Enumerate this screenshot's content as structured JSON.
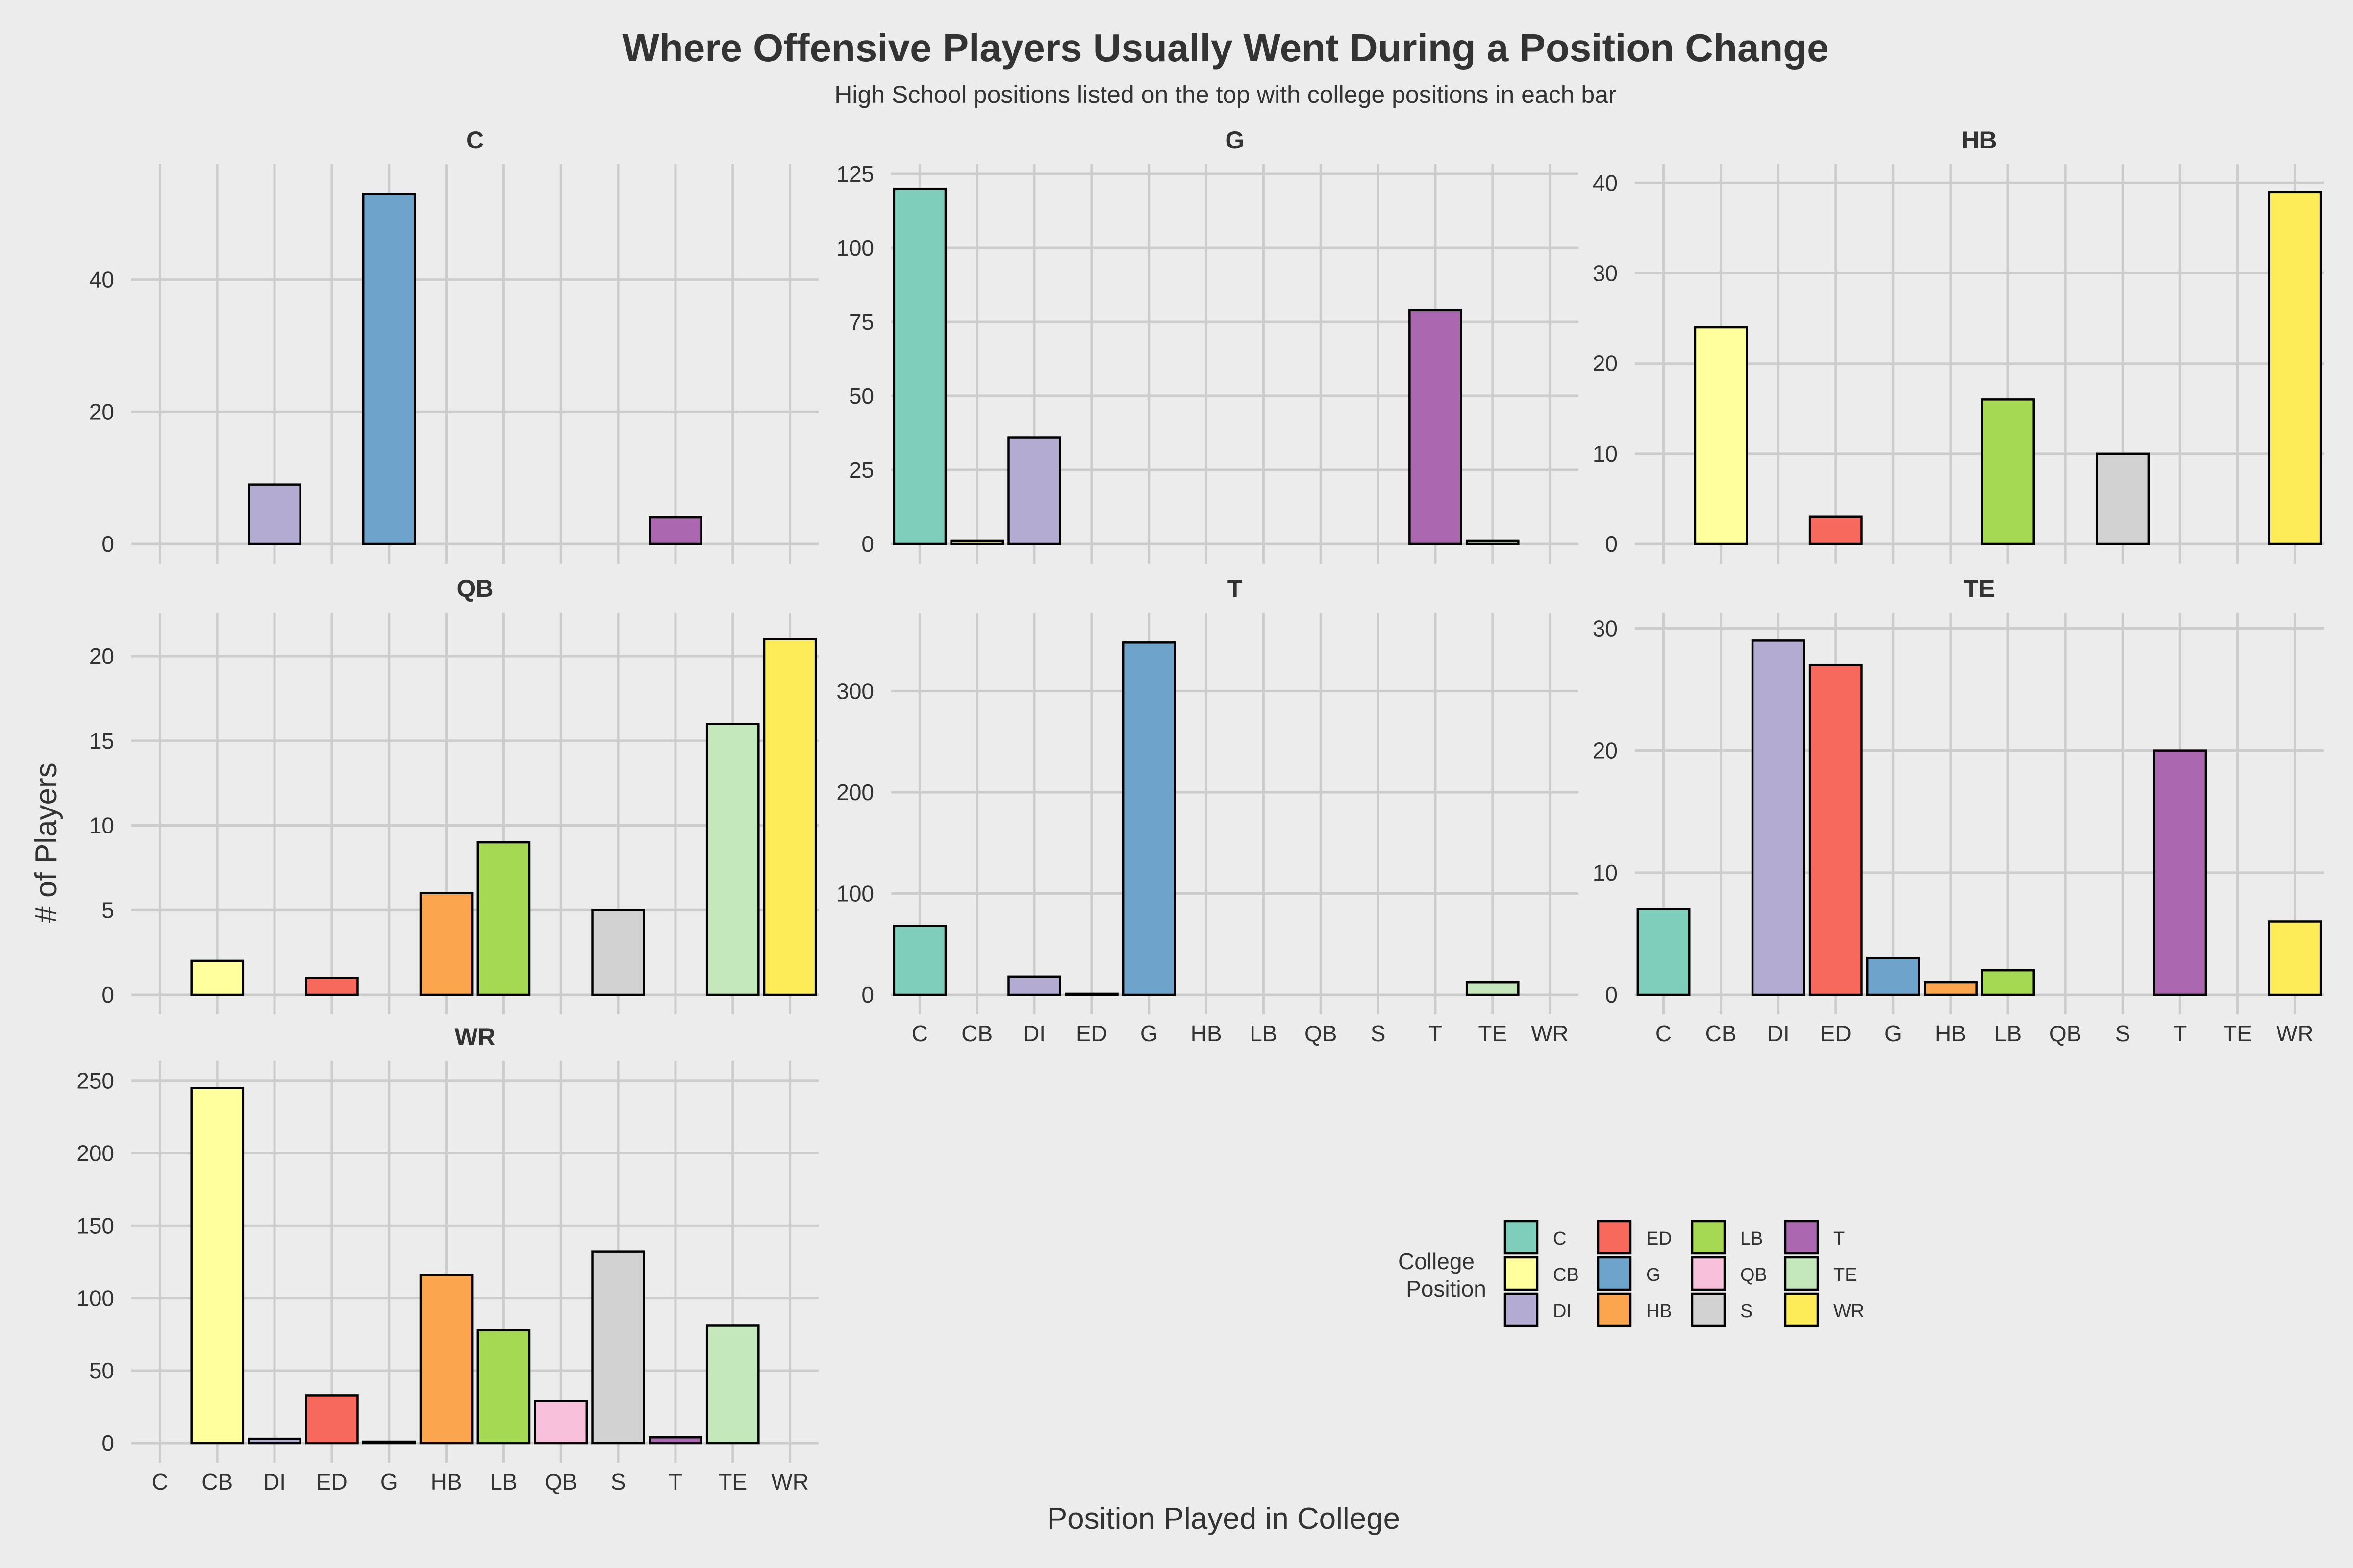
{
  "chart_data": {
    "type": "bar",
    "title": "Where Offensive Players Usually Went During a Position Change",
    "subtitle": "High School positions listed on the top with college positions in each bar",
    "xlabel": "Position Played in College",
    "ylabel": "# of Players",
    "legend_title": "College Position",
    "legend_title_lines": [
      "College",
      "Position"
    ],
    "legend_position": "bottom-right",
    "grid": true,
    "categories": [
      "C",
      "CB",
      "DI",
      "ED",
      "G",
      "HB",
      "LB",
      "QB",
      "S",
      "T",
      "TE",
      "WR"
    ],
    "colors": {
      "C": "#7fcdbb",
      "CB": "#ffff9e",
      "DI": "#b3abd2",
      "ED": "#f8695d",
      "G": "#6ea3cc",
      "HB": "#fba64f",
      "LB": "#a5d954",
      "QB": "#f9c0dc",
      "S": "#d2d2d2",
      "T": "#ab68b0",
      "TE": "#c4e8bb",
      "WR": "#fdec58"
    },
    "panels": [
      {
        "name": "C",
        "ylim": [
          0,
          56
        ],
        "ticks": [
          0,
          20,
          40
        ],
        "values": {
          "DI": 9,
          "G": 53,
          "T": 4
        }
      },
      {
        "name": "G",
        "ylim": [
          0,
          125
        ],
        "ticks": [
          0,
          25,
          50,
          75,
          100,
          125
        ],
        "values": {
          "C": 120,
          "CB": 1,
          "DI": 36,
          "T": 79,
          "TE": 1
        }
      },
      {
        "name": "HB",
        "ylim": [
          0,
          41
        ],
        "ticks": [
          0,
          10,
          20,
          30,
          40
        ],
        "values": {
          "CB": 24,
          "ED": 3,
          "LB": 16,
          "S": 10,
          "WR": 39
        }
      },
      {
        "name": "QB",
        "ylim": [
          0,
          22
        ],
        "ticks": [
          0,
          5,
          10,
          15,
          20
        ],
        "values": {
          "CB": 2,
          "ED": 1,
          "HB": 6,
          "LB": 9,
          "S": 5,
          "TE": 16,
          "WR": 21
        }
      },
      {
        "name": "T",
        "ylim": [
          0,
          368
        ],
        "ticks": [
          0,
          100,
          200,
          300
        ],
        "values": {
          "C": 68,
          "DI": 18,
          "ED": 1,
          "G": 348,
          "TE": 12
        }
      },
      {
        "name": "TE",
        "ylim": [
          0,
          30.5
        ],
        "ticks": [
          0,
          10,
          20,
          30
        ],
        "values": {
          "C": 7,
          "DI": 29,
          "ED": 27,
          "G": 3,
          "HB": 1,
          "LB": 2,
          "T": 20,
          "WR": 6
        }
      },
      {
        "name": "WR",
        "ylim": [
          0,
          257
        ],
        "ticks": [
          0,
          50,
          100,
          150,
          200,
          250
        ],
        "values": {
          "CB": 245,
          "DI": 3,
          "ED": 33,
          "G": 1,
          "HB": 116,
          "LB": 78,
          "QB": 29,
          "S": 132,
          "T": 4,
          "TE": 81
        }
      }
    ]
  }
}
